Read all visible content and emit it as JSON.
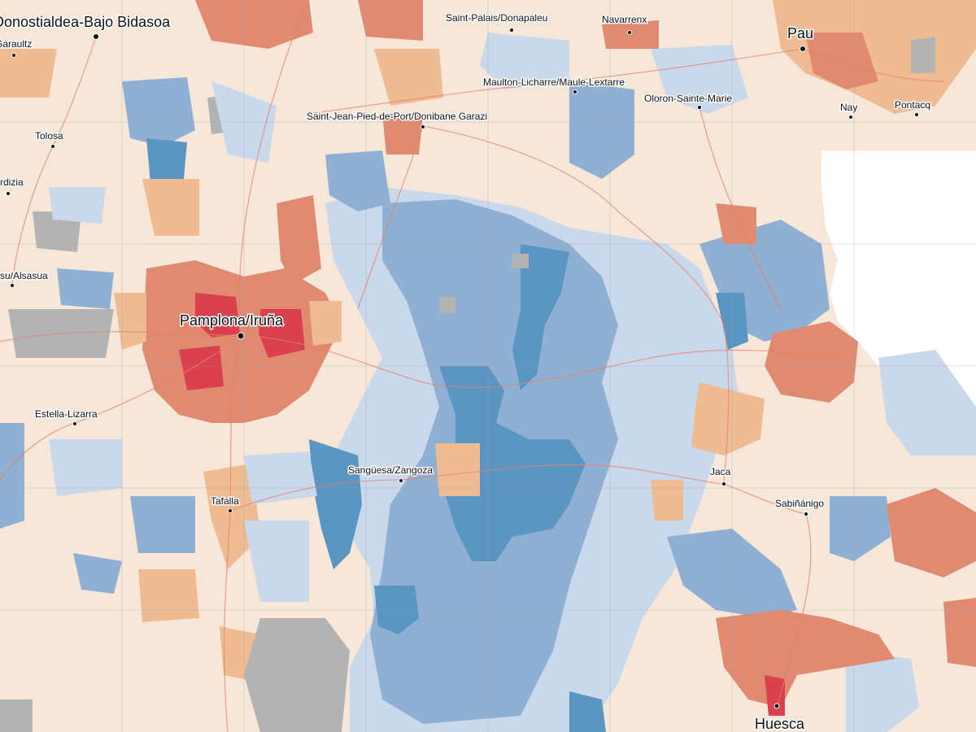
{
  "palette": {
    "base": "#f6e7d9",
    "light_blue": "#c9d8ea",
    "mid_blue": "#8fb0d2",
    "dark_blue": "#5b95c2",
    "light_orange": "#eebb92",
    "orange": "#e08a72",
    "red": "#d9414f",
    "gray": "#b3b3b3",
    "road": "#e8806a"
  },
  "places": [
    {
      "id": "donostia",
      "name": "Donostialdea-Bajo Bidasoa",
      "size": "xl",
      "dot": true
    },
    {
      "id": "saint-palais",
      "name": "Saint-Palais/Donapaleu",
      "size": "s",
      "dot": true
    },
    {
      "id": "navarrenx",
      "name": "Navarrenx",
      "size": "s",
      "dot": true
    },
    {
      "id": "pau",
      "name": "Pau",
      "size": "l",
      "dot": true
    },
    {
      "id": "garaultz",
      "name": "Garaultz",
      "size": "s",
      "dot": true
    },
    {
      "id": "mauleon",
      "name": "Maulton-Licharre/Maule-Lextarre",
      "size": "s",
      "dot": true
    },
    {
      "id": "oloron",
      "name": "Oloron-Sainte-Marie",
      "size": "s",
      "dot": true
    },
    {
      "id": "nay",
      "name": "Nay",
      "size": "s",
      "dot": true
    },
    {
      "id": "pontacq",
      "name": "Pontacq",
      "size": "s",
      "dot": true
    },
    {
      "id": "saint-jean",
      "name": "Saint-Jean-Pied-de-Port/Donibane Garazi",
      "size": "s",
      "dot": true
    },
    {
      "id": "tolosa",
      "name": "Tolosa",
      "size": "s",
      "dot": true
    },
    {
      "id": "ordizia",
      "name": "rdizia",
      "size": "s",
      "dot": true
    },
    {
      "id": "alsasua",
      "name": "su/Alsasua",
      "size": "s",
      "dot": true
    },
    {
      "id": "pamplona",
      "name": "Pamplona/Iruña",
      "size": "l",
      "dot": true
    },
    {
      "id": "estella",
      "name": "Estella-Lizarra",
      "size": "s",
      "dot": true
    },
    {
      "id": "sanguesa",
      "name": "Sangüesa/Zangoza",
      "size": "s",
      "dot": true
    },
    {
      "id": "jaca",
      "name": "Jaca",
      "size": "s",
      "dot": true
    },
    {
      "id": "sabinanigo",
      "name": "Sabiñánigo",
      "size": "s",
      "dot": true
    },
    {
      "id": "tafalla",
      "name": "Tafalla",
      "size": "s",
      "dot": true
    },
    {
      "id": "huesca",
      "name": "Huesca",
      "size": "l",
      "dot": true
    }
  ]
}
